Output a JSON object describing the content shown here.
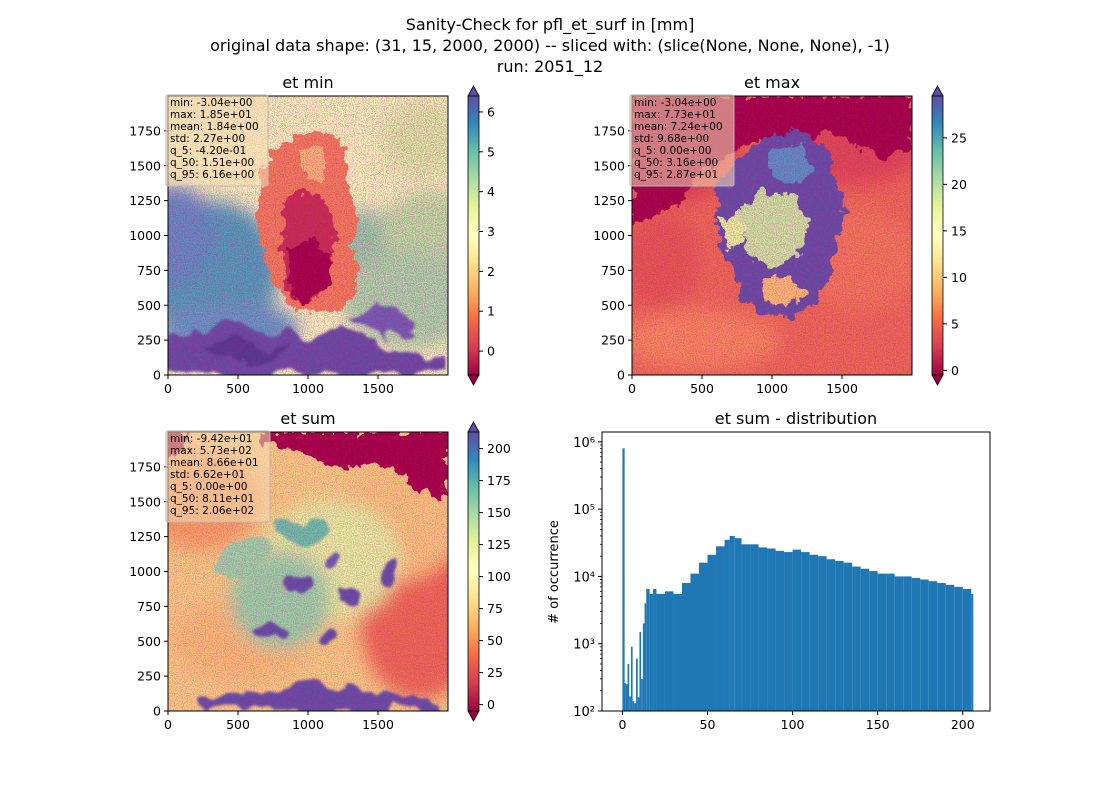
{
  "suptitle": {
    "line1": "Sanity-Check for pfl_et_surf in [mm]",
    "line2": "original data shape: (31, 15, 2000, 2000) -- sliced with: (slice(None, None, None), -1)",
    "line3": "run: 2051_12"
  },
  "colors": {
    "spectral": [
      "#9e0142",
      "#d53e4f",
      "#f46d43",
      "#fdae61",
      "#fee08b",
      "#ffffbf",
      "#e6f598",
      "#abdda4",
      "#66c2a5",
      "#3288bd",
      "#5e4fa2"
    ],
    "hist_bar": "#1f77b4",
    "stats_box_fill": "#f5deb3"
  },
  "chart_data": [
    {
      "type": "heatmap",
      "title": "et min",
      "xlim": [
        0,
        2000
      ],
      "ylim": [
        0,
        2000
      ],
      "xticks": [
        "0",
        "500",
        "1000",
        "1500"
      ],
      "yticks": [
        "0",
        "250",
        "500",
        "750",
        "1000",
        "1250",
        "1500",
        "1750"
      ],
      "colorbar": {
        "vmin": -0.6,
        "vmax": 6.4,
        "ticks": [
          "0",
          "1",
          "2",
          "3",
          "4",
          "5",
          "6"
        ],
        "tick_values": [
          0,
          1,
          2,
          3,
          4,
          5,
          6
        ],
        "extend": "both"
      },
      "stats": [
        "min: -3.04e+00",
        "max: 1.85e+01",
        "mean: 1.84e+00",
        "std: 2.27e+00",
        "q_5: -4.20e-01",
        "q_50: 1.51e+00",
        "q_95: 6.16e+00"
      ],
      "stats_box_alpha": 0.55
    },
    {
      "type": "heatmap",
      "title": "et max",
      "xlim": [
        0,
        2000
      ],
      "ylim": [
        0,
        2000
      ],
      "xticks": [
        "0",
        "500",
        "1000",
        "1500"
      ],
      "yticks": [
        "0",
        "250",
        "500",
        "750",
        "1000",
        "1250",
        "1500",
        "1750"
      ],
      "colorbar": {
        "vmin": -0.5,
        "vmax": 29.5,
        "ticks": [
          "0",
          "5",
          "10",
          "15",
          "20",
          "25"
        ],
        "tick_values": [
          0,
          5,
          10,
          15,
          20,
          25
        ],
        "extend": "both"
      },
      "stats": [
        "min: -3.04e+00",
        "max: 7.73e+01",
        "mean: 7.24e+00",
        "std: 9.68e+00",
        "q_5: 0.00e+00",
        "q_50: 3.16e+00",
        "q_95: 2.87e+01"
      ],
      "stats_box_alpha": 0.55
    },
    {
      "type": "heatmap",
      "title": "et sum",
      "xlim": [
        0,
        2000
      ],
      "ylim": [
        0,
        2000
      ],
      "xticks": [
        "0",
        "500",
        "1000",
        "1500"
      ],
      "yticks": [
        "0",
        "250",
        "500",
        "750",
        "1000",
        "1250",
        "1500",
        "1750"
      ],
      "colorbar": {
        "vmin": -5,
        "vmax": 213,
        "ticks": [
          "0",
          "25",
          "50",
          "75",
          "100",
          "125",
          "150",
          "175",
          "200"
        ],
        "tick_values": [
          0,
          25,
          50,
          75,
          100,
          125,
          150,
          175,
          200
        ],
        "extend": "both"
      },
      "stats": [
        "min: -9.42e+01",
        "max: 5.73e+02",
        "mean: 8.66e+01",
        "std: 6.62e+01",
        "q_5: 0.00e+00",
        "q_50: 8.11e+01",
        "q_95: 2.06e+02"
      ],
      "stats_box_alpha": 0.55
    },
    {
      "type": "bar",
      "title": "et sum - distribution",
      "ylabel": "# of occurrence",
      "xlabel": "",
      "yscale": "log",
      "xlim": [
        -12,
        216
      ],
      "ylim": [
        100,
        1400000
      ],
      "xticks": [
        "0",
        "50",
        "100",
        "150",
        "200"
      ],
      "xtick_values": [
        0,
        50,
        100,
        150,
        200
      ],
      "yticks": [
        "10²",
        "10³",
        "10⁴",
        "10⁵",
        "10⁶"
      ],
      "ytick_values": [
        100,
        1000,
        10000,
        100000,
        1000000
      ],
      "bins": [
        {
          "x": 0,
          "count": 800000
        },
        {
          "x": 1,
          "count": 260
        },
        {
          "x": 2,
          "count": 250
        },
        {
          "x": 3,
          "count": 500
        },
        {
          "x": 4,
          "count": 165
        },
        {
          "x": 5,
          "count": 900
        },
        {
          "x": 6,
          "count": 140
        },
        {
          "x": 7,
          "count": 130
        },
        {
          "x": 8,
          "count": 600
        },
        {
          "x": 9,
          "count": 160
        },
        {
          "x": 10,
          "count": 1500
        },
        {
          "x": 11,
          "count": 300
        },
        {
          "x": 12,
          "count": 2000
        },
        {
          "x": 13,
          "count": 4000
        },
        {
          "x": 14,
          "count": 6500
        },
        {
          "x": 16,
          "count": 5500
        },
        {
          "x": 18,
          "count": 6500
        },
        {
          "x": 20,
          "count": 5500
        },
        {
          "x": 25,
          "count": 6000
        },
        {
          "x": 30,
          "count": 5500
        },
        {
          "x": 35,
          "count": 8000
        },
        {
          "x": 40,
          "count": 11000
        },
        {
          "x": 45,
          "count": 16000
        },
        {
          "x": 50,
          "count": 21000
        },
        {
          "x": 55,
          "count": 28000
        },
        {
          "x": 60,
          "count": 35000
        },
        {
          "x": 63,
          "count": 40000
        },
        {
          "x": 66,
          "count": 37000
        },
        {
          "x": 70,
          "count": 30000
        },
        {
          "x": 75,
          "count": 30000
        },
        {
          "x": 80,
          "count": 27000
        },
        {
          "x": 85,
          "count": 26000
        },
        {
          "x": 90,
          "count": 24000
        },
        {
          "x": 95,
          "count": 23000
        },
        {
          "x": 100,
          "count": 25000
        },
        {
          "x": 105,
          "count": 23000
        },
        {
          "x": 110,
          "count": 21000
        },
        {
          "x": 115,
          "count": 20000
        },
        {
          "x": 120,
          "count": 18000
        },
        {
          "x": 125,
          "count": 17000
        },
        {
          "x": 130,
          "count": 16000
        },
        {
          "x": 135,
          "count": 14000
        },
        {
          "x": 140,
          "count": 13000
        },
        {
          "x": 145,
          "count": 12000
        },
        {
          "x": 150,
          "count": 11000
        },
        {
          "x": 155,
          "count": 11000
        },
        {
          "x": 160,
          "count": 10000
        },
        {
          "x": 165,
          "count": 10000
        },
        {
          "x": 170,
          "count": 9500
        },
        {
          "x": 175,
          "count": 9000
        },
        {
          "x": 180,
          "count": 8500
        },
        {
          "x": 185,
          "count": 8000
        },
        {
          "x": 190,
          "count": 7500
        },
        {
          "x": 195,
          "count": 7000
        },
        {
          "x": 200,
          "count": 6500
        },
        {
          "x": 205,
          "count": 5500
        }
      ]
    }
  ]
}
